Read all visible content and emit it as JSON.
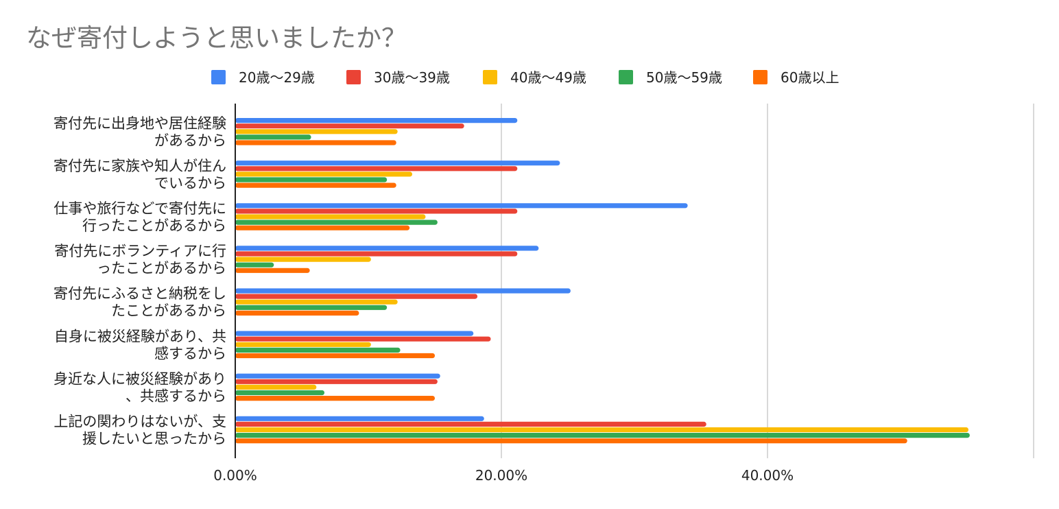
{
  "chart_data": {
    "type": "bar",
    "orientation": "horizontal",
    "title": "なぜ寄付しようと思いましたか？",
    "legend_position": "top",
    "grid": true,
    "xlim": [
      0,
      60
    ],
    "x_ticks": [
      {
        "value": 0,
        "label": "0.00%"
      },
      {
        "value": 20,
        "label": "20.00%"
      },
      {
        "value": 40,
        "label": "40.00%"
      }
    ],
    "categories": [
      [
        "寄付先に出身地や居住経験",
        "があるから"
      ],
      [
        "寄付先に家族や知人が住ん",
        "でいるから"
      ],
      [
        "仕事や旅行などで寄付先に",
        "行ったことがあるから"
      ],
      [
        "寄付先にボランティアに行",
        "ったことがあるから"
      ],
      [
        "寄付先にふるさと納税をし",
        "たことがあるから"
      ],
      [
        "自身に被災経験があり、共",
        "感するから"
      ],
      [
        "身近な人に被災経験があり",
        "、共感するから"
      ],
      [
        "上記の関わりはないが、支",
        "援したいと思ったから"
      ]
    ],
    "series": [
      {
        "name": "20歳〜29歳",
        "color": "#4285f4",
        "values": [
          21.2,
          24.4,
          34.0,
          22.8,
          25.2,
          17.9,
          15.4,
          18.7
        ]
      },
      {
        "name": "30歳〜39歳",
        "color": "#ea4335",
        "values": [
          17.2,
          21.2,
          21.2,
          21.2,
          18.2,
          19.2,
          15.2,
          35.4
        ]
      },
      {
        "name": "40歳〜49歳",
        "color": "#fbbc04",
        "values": [
          12.2,
          13.3,
          14.3,
          10.2,
          12.2,
          10.2,
          6.1,
          55.1
        ]
      },
      {
        "name": "50歳〜59歳",
        "color": "#34a853",
        "values": [
          5.7,
          11.4,
          15.2,
          2.9,
          11.4,
          12.4,
          6.7,
          55.2
        ]
      },
      {
        "name": "60歳以上",
        "color": "#ff6d01",
        "values": [
          12.1,
          12.1,
          13.1,
          5.6,
          9.3,
          15.0,
          15.0,
          50.5
        ]
      }
    ]
  }
}
